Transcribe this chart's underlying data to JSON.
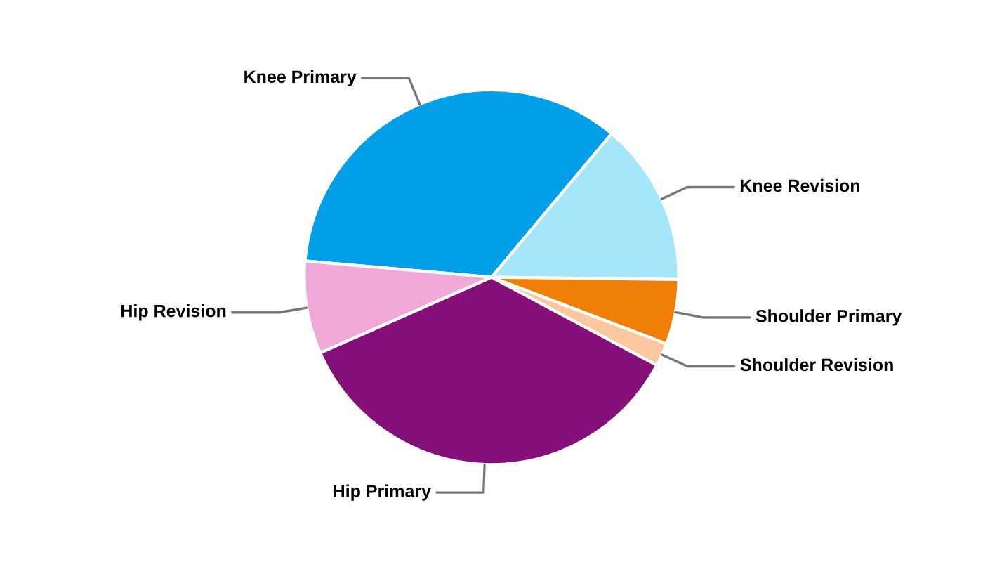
{
  "chart_data": {
    "type": "pie",
    "categories": [
      "Knee Primary",
      "Knee Revision",
      "Shoulder Primary",
      "Shoulder Revision",
      "Hip Primary",
      "Hip Revision"
    ],
    "values": [
      34.7,
      14.1,
      5.6,
      2.0,
      35.6,
      8.0
    ],
    "colors": [
      "#009fe8",
      "#a6e6fb",
      "#f07f09",
      "#fdc8a0",
      "#86107a",
      "#f0a8d8"
    ],
    "legend": false
  }
}
